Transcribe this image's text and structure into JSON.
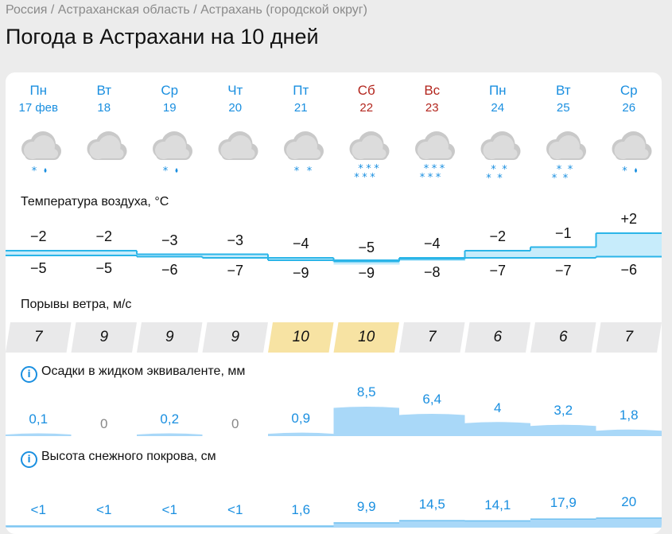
{
  "breadcrumbs": "Россия / Астраханская область / Астрахань (городской округ)",
  "page_title": "Погода в Астрахани на 10 дней",
  "colors": {
    "accent": "#1a8fe0",
    "weekend": "#b3261e",
    "temp_band": "#c7ecfb",
    "temp_line": "#2bb5e8",
    "precip": "#a9d8f8",
    "gust_high": "#f7e3a3",
    "gust_normal": "#e9e9ea"
  },
  "days": [
    {
      "weekday": "Пн",
      "date": "17 фев",
      "weekend": false,
      "icon": "cloud-snow-rain-icon",
      "tmax": "−2",
      "tmin": "−5",
      "gust": "7",
      "gust_high": false,
      "precip": "0,1",
      "snow": "<1"
    },
    {
      "weekday": "Вт",
      "date": "18",
      "weekend": false,
      "icon": "cloud-icon",
      "tmax": "−2",
      "tmin": "−5",
      "gust": "9",
      "gust_high": false,
      "precip": "0",
      "snow": "<1"
    },
    {
      "weekday": "Ср",
      "date": "19",
      "weekend": false,
      "icon": "cloud-snow-rain-icon",
      "tmax": "−3",
      "tmin": "−6",
      "gust": "9",
      "gust_high": false,
      "precip": "0,2",
      "snow": "<1"
    },
    {
      "weekday": "Чт",
      "date": "20",
      "weekend": false,
      "icon": "cloud-icon",
      "tmax": "−3",
      "tmin": "−7",
      "gust": "9",
      "gust_high": false,
      "precip": "0",
      "snow": "<1"
    },
    {
      "weekday": "Пт",
      "date": "21",
      "weekend": false,
      "icon": "cloud-light-snow-icon",
      "tmax": "−4",
      "tmin": "−9",
      "gust": "10",
      "gust_high": true,
      "precip": "0,9",
      "snow": "1,6"
    },
    {
      "weekday": "Сб",
      "date": "22",
      "weekend": true,
      "icon": "cloud-heavy-snow-icon",
      "tmax": "−5",
      "tmin": "−9",
      "gust": "10",
      "gust_high": true,
      "precip": "8,5",
      "snow": "9,9"
    },
    {
      "weekday": "Вс",
      "date": "23",
      "weekend": true,
      "icon": "cloud-heavy-snow-icon",
      "tmax": "−4",
      "tmin": "−8",
      "gust": "7",
      "gust_high": false,
      "precip": "6,4",
      "snow": "14,5"
    },
    {
      "weekday": "Пн",
      "date": "24",
      "weekend": false,
      "icon": "cloud-snow-icon",
      "tmax": "−2",
      "tmin": "−7",
      "gust": "6",
      "gust_high": false,
      "precip": "4",
      "snow": "14,1"
    },
    {
      "weekday": "Вт",
      "date": "25",
      "weekend": false,
      "icon": "cloud-snow-icon",
      "tmax": "−1",
      "tmin": "−7",
      "gust": "6",
      "gust_high": false,
      "precip": "3,2",
      "snow": "17,9"
    },
    {
      "weekday": "Ср",
      "date": "26",
      "weekend": false,
      "icon": "cloud-snow-rain-icon",
      "tmax": "+2",
      "tmin": "−6",
      "gust": "7",
      "gust_high": false,
      "precip": "1,8",
      "snow": "20"
    }
  ],
  "chart_data": [
    {
      "type": "area",
      "title": "Температура воздуха, °С",
      "categories": [
        "17 фев",
        "18",
        "19",
        "20",
        "21",
        "22",
        "23",
        "24",
        "25",
        "26"
      ],
      "series": [
        {
          "name": "max",
          "values": [
            -2,
            -2,
            -3,
            -3,
            -4,
            -5,
            -4,
            -2,
            -1,
            2
          ]
        },
        {
          "name": "min",
          "values": [
            -5,
            -5,
            -6,
            -7,
            -9,
            -9,
            -8,
            -7,
            -7,
            -6
          ]
        }
      ]
    },
    {
      "type": "bar",
      "title": "Порывы ветра, м/с",
      "categories": [
        "17 фев",
        "18",
        "19",
        "20",
        "21",
        "22",
        "23",
        "24",
        "25",
        "26"
      ],
      "values": [
        7,
        9,
        9,
        9,
        10,
        10,
        7,
        6,
        6,
        7
      ]
    },
    {
      "type": "bar",
      "title": "Осадки в жидком эквиваленте, мм",
      "categories": [
        "17 фев",
        "18",
        "19",
        "20",
        "21",
        "22",
        "23",
        "24",
        "25",
        "26"
      ],
      "values": [
        0.1,
        0,
        0.2,
        0,
        0.9,
        8.5,
        6.4,
        4,
        3.2,
        1.8
      ]
    },
    {
      "type": "bar",
      "title": "Высота снежного покрова, см",
      "categories": [
        "17 фев",
        "18",
        "19",
        "20",
        "21",
        "22",
        "23",
        "24",
        "25",
        "26"
      ],
      "values": [
        0.5,
        0.5,
        0.5,
        0.5,
        1.6,
        9.9,
        14.5,
        14.1,
        17.9,
        20
      ]
    }
  ],
  "sections": {
    "temp_label": "Температура воздуха, °С",
    "wind_label": "Порывы ветра, м/с",
    "precip_label": "Осадки в жидком эквиваленте, мм",
    "snow_label": "Высота снежного покрова, см"
  }
}
